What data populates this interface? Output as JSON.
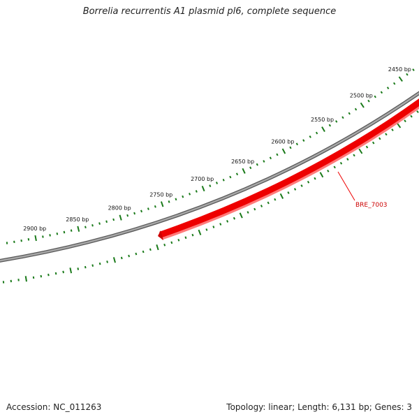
{
  "title": "Borrelia recurrentis A1 plasmid pl6, complete sequence",
  "footer": {
    "accession": "Accession: NC_011263",
    "summary": "Topology: linear; Length: 6,131 bp; Genes: 3"
  },
  "colors": {
    "backbone": "#8a8a8a",
    "ticks": "#1a7a1a",
    "gene": "#ee0000",
    "gene_label": "#cc0000"
  },
  "tick_labels": [
    "2450 bp",
    "2500 bp",
    "2550 bp",
    "2600 bp",
    "2650 bp",
    "2700 bp",
    "2750 bp",
    "2800 bp",
    "2850 bp",
    "2900 bp"
  ],
  "genes": [
    {
      "name": "BRE_7003",
      "color": "#ee0000"
    }
  ]
}
